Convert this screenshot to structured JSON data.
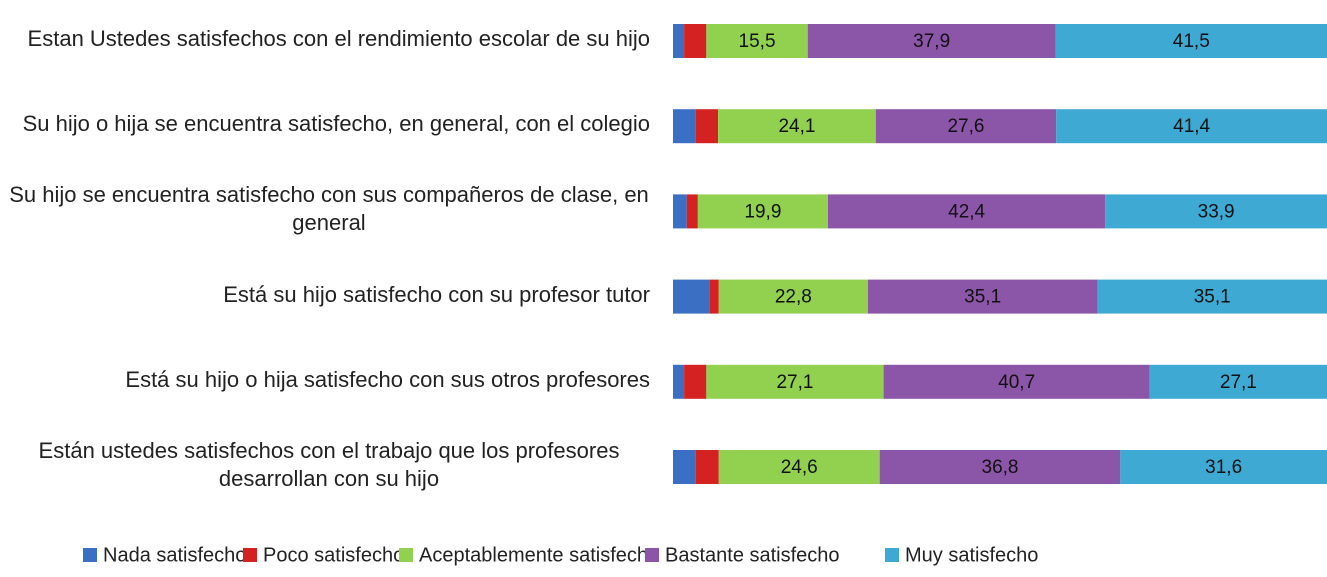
{
  "chart_data": {
    "type": "stacked-bar-horizontal",
    "categories": [
      "Estan Ustedes satisfechos con el rendimiento escolar de su hijo",
      "Su hijo o hija se encuentra satisfecho, en general, con el colegio",
      "Su hijo se encuentra satisfecho con sus compañeros de clase, en general",
      "Está su hijo satisfecho con su profesor tutor",
      "Está su hijo o hija satisfecho con sus otros profesores",
      "Están ustedes satisfechos con el trabajo que los profesores desarrollan con su hijo"
    ],
    "xlim": [
      0,
      100
    ],
    "series": [
      {
        "name": "Nada satisfecho",
        "color": "#3a6fc4",
        "values": [
          1.7,
          3.5,
          2.1,
          5.6,
          1.7,
          3.5
        ]
      },
      {
        "name": "Poco satisfecho",
        "color": "#d42222",
        "values": [
          3.4,
          3.4,
          1.7,
          1.4,
          3.4,
          3.5
        ]
      },
      {
        "name": "Aceptablemente satisfecho",
        "color": "#92d050",
        "values": [
          15.5,
          24.1,
          19.9,
          22.8,
          27.1,
          24.6
        ],
        "value_labels": [
          "15,5",
          "24,1",
          "19,9",
          "22,8",
          "27,1",
          "24,6"
        ]
      },
      {
        "name": "Bastante satisfecho",
        "color": "#8b55a8",
        "values": [
          37.9,
          27.6,
          42.4,
          35.1,
          40.7,
          36.8
        ],
        "value_labels": [
          "37,9",
          "27,6",
          "42,4",
          "35,1",
          "40,7",
          "36,8"
        ]
      },
      {
        "name": "Muy satisfecho",
        "color": "#3eaad4",
        "values": [
          41.5,
          41.4,
          33.9,
          35.1,
          27.1,
          31.6
        ],
        "value_labels": [
          "41,5",
          "41,4",
          "33,9",
          "35,1",
          "27,1",
          "31,6"
        ]
      }
    ],
    "legend": "bottom"
  }
}
